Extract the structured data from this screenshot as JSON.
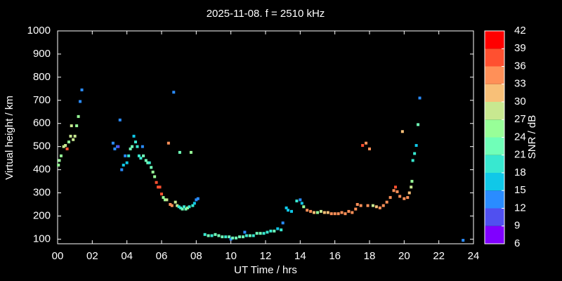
{
  "chart_data": {
    "type": "scatter",
    "title": "2025-11-08. f = 2510 kHz",
    "x_label": "UT Time / hrs",
    "y_label": "Virtual height / km",
    "colorbar_label": "SNR / dB",
    "xlim": [
      0,
      24
    ],
    "ylim": [
      80,
      1000
    ],
    "xticks": [
      {
        "value": 0,
        "label": "00"
      },
      {
        "value": 2,
        "label": "02"
      },
      {
        "value": 4,
        "label": "04"
      },
      {
        "value": 6,
        "label": "06"
      },
      {
        "value": 8,
        "label": "08"
      },
      10,
      12,
      14,
      16,
      18,
      20,
      22,
      24
    ],
    "yticks": [
      100,
      200,
      300,
      400,
      500,
      600,
      700,
      800,
      900,
      1000
    ],
    "clim": [
      6,
      42
    ],
    "cticks": [
      6,
      9,
      12,
      15,
      18,
      21,
      24,
      27,
      30,
      33,
      36,
      39,
      42
    ],
    "colorscale": [
      "#8000ff",
      "#5050f0",
      "#2a8cff",
      "#10c8e8",
      "#38e8d0",
      "#70ffb8",
      "#98ff98",
      "#c8e890",
      "#f8c078",
      "#ff9058",
      "#ff5030",
      "#ff0000"
    ],
    "x": [
      0.05,
      0.1,
      0.2,
      0.35,
      0.45,
      0.55,
      0.65,
      0.75,
      0.8,
      0.9,
      1.0,
      1.1,
      1.2,
      1.3,
      1.4,
      3.2,
      3.3,
      3.45,
      3.5,
      3.6,
      3.7,
      3.8,
      3.9,
      4.0,
      4.1,
      4.2,
      4.3,
      4.4,
      4.5,
      4.6,
      4.7,
      4.8,
      4.9,
      4.95,
      5.1,
      5.2,
      5.3,
      5.4,
      5.5,
      5.6,
      5.7,
      5.8,
      5.9,
      6.0,
      6.1,
      6.2,
      6.3,
      6.4,
      6.5,
      6.6,
      6.7,
      6.8,
      6.9,
      7.0,
      7.05,
      7.1,
      7.2,
      7.3,
      7.4,
      7.5,
      7.6,
      7.7,
      7.8,
      7.9,
      8.0,
      8.1,
      8.5,
      8.7,
      8.9,
      9.1,
      9.3,
      9.5,
      9.7,
      9.9,
      10.0,
      10.1,
      10.3,
      10.5,
      10.7,
      10.8,
      10.9,
      11.1,
      11.3,
      11.5,
      11.7,
      11.9,
      12.1,
      12.3,
      12.5,
      12.7,
      12.9,
      13.0,
      13.2,
      13.3,
      13.5,
      13.8,
      14.0,
      14.1,
      14.2,
      14.4,
      14.6,
      14.8,
      15.0,
      15.2,
      15.4,
      15.6,
      15.8,
      16.0,
      16.2,
      16.4,
      16.6,
      16.8,
      17.0,
      17.2,
      17.3,
      17.5,
      17.6,
      17.8,
      17.9,
      18.0,
      18.2,
      18.4,
      18.6,
      18.8,
      19.0,
      19.2,
      19.4,
      19.5,
      19.6,
      19.75,
      19.9,
      20.0,
      20.2,
      20.3,
      20.4,
      20.45,
      20.5,
      20.6,
      20.7,
      20.8,
      20.9,
      23.4
    ],
    "values": [
      420,
      440,
      460,
      500,
      505,
      490,
      520,
      545,
      590,
      530,
      545,
      590,
      630,
      695,
      745,
      515,
      490,
      500,
      500,
      615,
      400,
      420,
      460,
      430,
      460,
      490,
      500,
      545,
      520,
      500,
      460,
      450,
      500,
      460,
      440,
      430,
      430,
      410,
      390,
      370,
      345,
      325,
      325,
      295,
      280,
      270,
      270,
      515,
      250,
      245,
      735,
      260,
      245,
      240,
      475,
      235,
      230,
      240,
      230,
      235,
      240,
      475,
      245,
      255,
      270,
      275,
      120,
      115,
      115,
      120,
      115,
      110,
      110,
      110,
      100,
      105,
      105,
      110,
      110,
      130,
      115,
      115,
      115,
      125,
      125,
      125,
      130,
      135,
      135,
      145,
      140,
      170,
      235,
      225,
      220,
      265,
      270,
      255,
      240,
      225,
      220,
      215,
      215,
      220,
      215,
      215,
      210,
      210,
      210,
      215,
      210,
      220,
      215,
      230,
      250,
      245,
      505,
      515,
      245,
      490,
      245,
      240,
      235,
      245,
      260,
      280,
      310,
      325,
      305,
      285,
      565,
      275,
      280,
      300,
      325,
      350,
      440,
      470,
      505,
      595,
      710,
      95
    ],
    "snr": [
      24,
      24,
      24,
      27,
      27,
      36,
      24,
      27,
      27,
      27,
      27,
      24,
      24,
      12,
      12,
      12,
      12,
      12,
      9,
      12,
      12,
      15,
      12,
      15,
      18,
      21,
      21,
      15,
      18,
      18,
      18,
      18,
      12,
      21,
      21,
      21,
      18,
      21,
      24,
      24,
      36,
      36,
      36,
      36,
      24,
      24,
      27,
      33,
      33,
      33,
      12,
      27,
      27,
      18,
      21,
      18,
      21,
      18,
      21,
      24,
      18,
      24,
      18,
      15,
      12,
      12,
      18,
      21,
      18,
      21,
      21,
      21,
      18,
      21,
      12,
      21,
      21,
      21,
      21,
      12,
      18,
      21,
      18,
      21,
      21,
      18,
      18,
      18,
      21,
      15,
      18,
      12,
      15,
      15,
      15,
      18,
      12,
      15,
      24,
      33,
      33,
      30,
      24,
      27,
      30,
      30,
      33,
      33,
      33,
      33,
      33,
      33,
      33,
      33,
      33,
      33,
      36,
      33,
      33,
      33,
      27,
      30,
      33,
      33,
      33,
      33,
      33,
      36,
      33,
      33,
      30,
      33,
      33,
      30,
      27,
      24,
      18,
      18,
      15,
      21,
      12,
      12
    ]
  }
}
